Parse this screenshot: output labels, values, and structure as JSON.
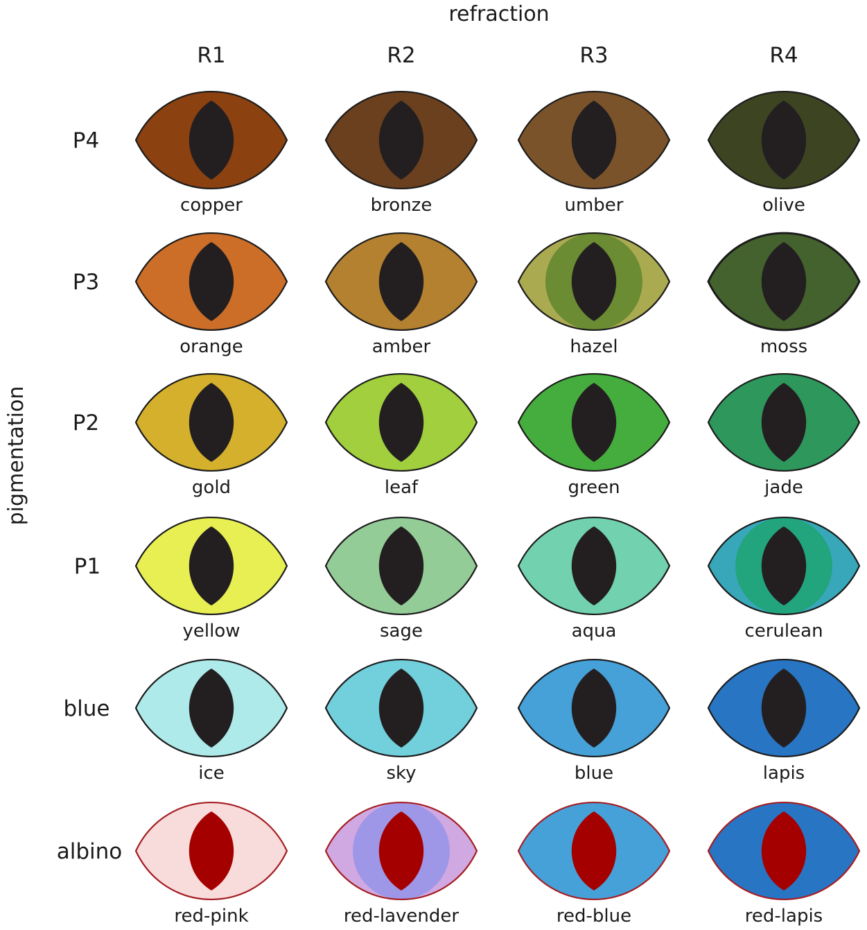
{
  "axes": {
    "x_title": "refraction",
    "y_title": "pigmentation"
  },
  "columns": [
    "R1",
    "R2",
    "R3",
    "R4"
  ],
  "rows": [
    "P4",
    "P3",
    "P2",
    "P1",
    "blue",
    "albino"
  ],
  "colors": {
    "outline_dark": "#1b1b1b",
    "outline_albino": "#a51d22",
    "pupil_dark": "#231f20",
    "pupil_albino": "#a50000"
  },
  "eyes": [
    [
      {
        "label": "copper",
        "iris": "#8b4110"
      },
      {
        "label": "bronze",
        "iris": "#6b401e"
      },
      {
        "label": "umber",
        "iris": "#7b532a"
      },
      {
        "label": "olive",
        "iris": "#3c4422"
      }
    ],
    [
      {
        "label": "orange",
        "iris": "#cc6e27"
      },
      {
        "label": "amber",
        "iris": "#b48131"
      },
      {
        "label": "hazel",
        "iris": "#aaaa51",
        "inner": "#6b8c33"
      },
      {
        "label": "moss",
        "iris": "#44622d"
      }
    ],
    [
      {
        "label": "gold",
        "iris": "#d4b02c"
      },
      {
        "label": "leaf",
        "iris": "#a1cf3d"
      },
      {
        "label": "green",
        "iris": "#45ad3d"
      },
      {
        "label": "jade",
        "iris": "#2e985c"
      }
    ],
    [
      {
        "label": "yellow",
        "iris": "#e8ef53"
      },
      {
        "label": "sage",
        "iris": "#94cc98"
      },
      {
        "label": "aqua",
        "iris": "#72d2b0"
      },
      {
        "label": "cerulean",
        "iris": "#38a7ba",
        "inner": "#22a57d"
      }
    ],
    [
      {
        "label": "ice",
        "iris": "#aeeaea"
      },
      {
        "label": "sky",
        "iris": "#72cfdc"
      },
      {
        "label": "blue",
        "iris": "#45a1d8"
      },
      {
        "label": "lapis",
        "iris": "#2875c4"
      }
    ],
    [
      {
        "label": "red-pink",
        "iris": "#f8dbdb",
        "albino": true
      },
      {
        "label": "red-lavender",
        "iris": "#d1a9e2",
        "inner": "#9e96e6",
        "albino": true
      },
      {
        "label": "red-blue",
        "iris": "#45a1d8",
        "albino": true
      },
      {
        "label": "red-lapis",
        "iris": "#2875c4",
        "albino": true
      }
    ]
  ]
}
